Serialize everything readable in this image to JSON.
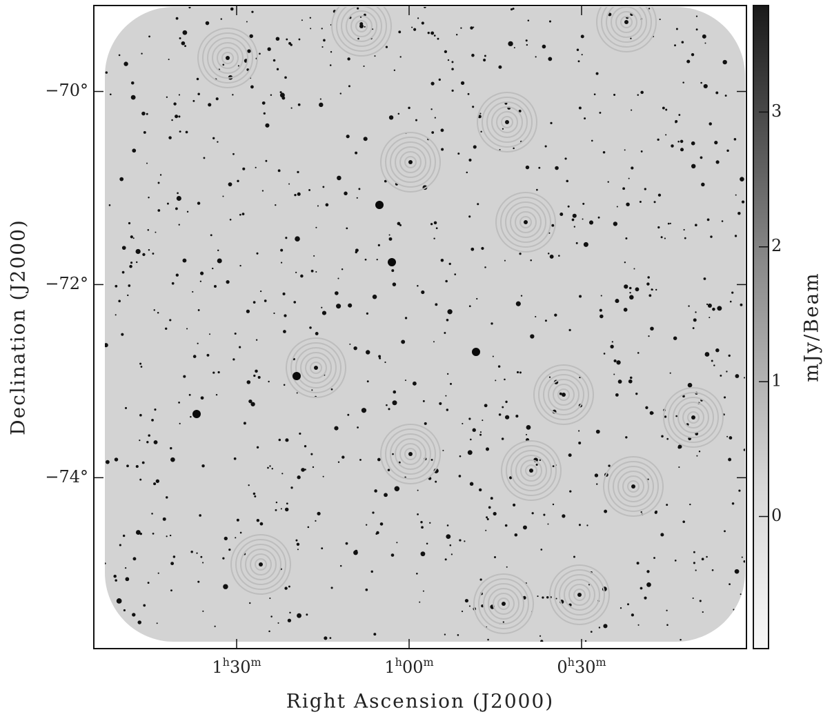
{
  "chart_data": {
    "type": "image",
    "xlabel": "Right Ascension (J2000)",
    "ylabel": "Declination (J2000)",
    "xlim": [
      1.914,
      0.022
    ],
    "ylim": [
      -75.77,
      -69.11
    ],
    "xticks": [
      {
        "value": 1.5,
        "label": [
          "1",
          "h",
          "30",
          "m"
        ]
      },
      {
        "value": 1.0,
        "label": [
          "1",
          "h",
          "00",
          "m"
        ]
      },
      {
        "value": 0.5,
        "label": [
          "0",
          "h",
          "30",
          "m"
        ]
      }
    ],
    "yticks": [
      {
        "value": -70,
        "label": "−70°"
      },
      {
        "value": -72,
        "label": "−72°"
      },
      {
        "value": -74,
        "label": "−74°"
      }
    ],
    "colorbar": {
      "label": "mJy/Beam",
      "clim": [
        -0.98,
        3.79
      ],
      "ticks": [
        0,
        1,
        2,
        3
      ]
    }
  }
}
